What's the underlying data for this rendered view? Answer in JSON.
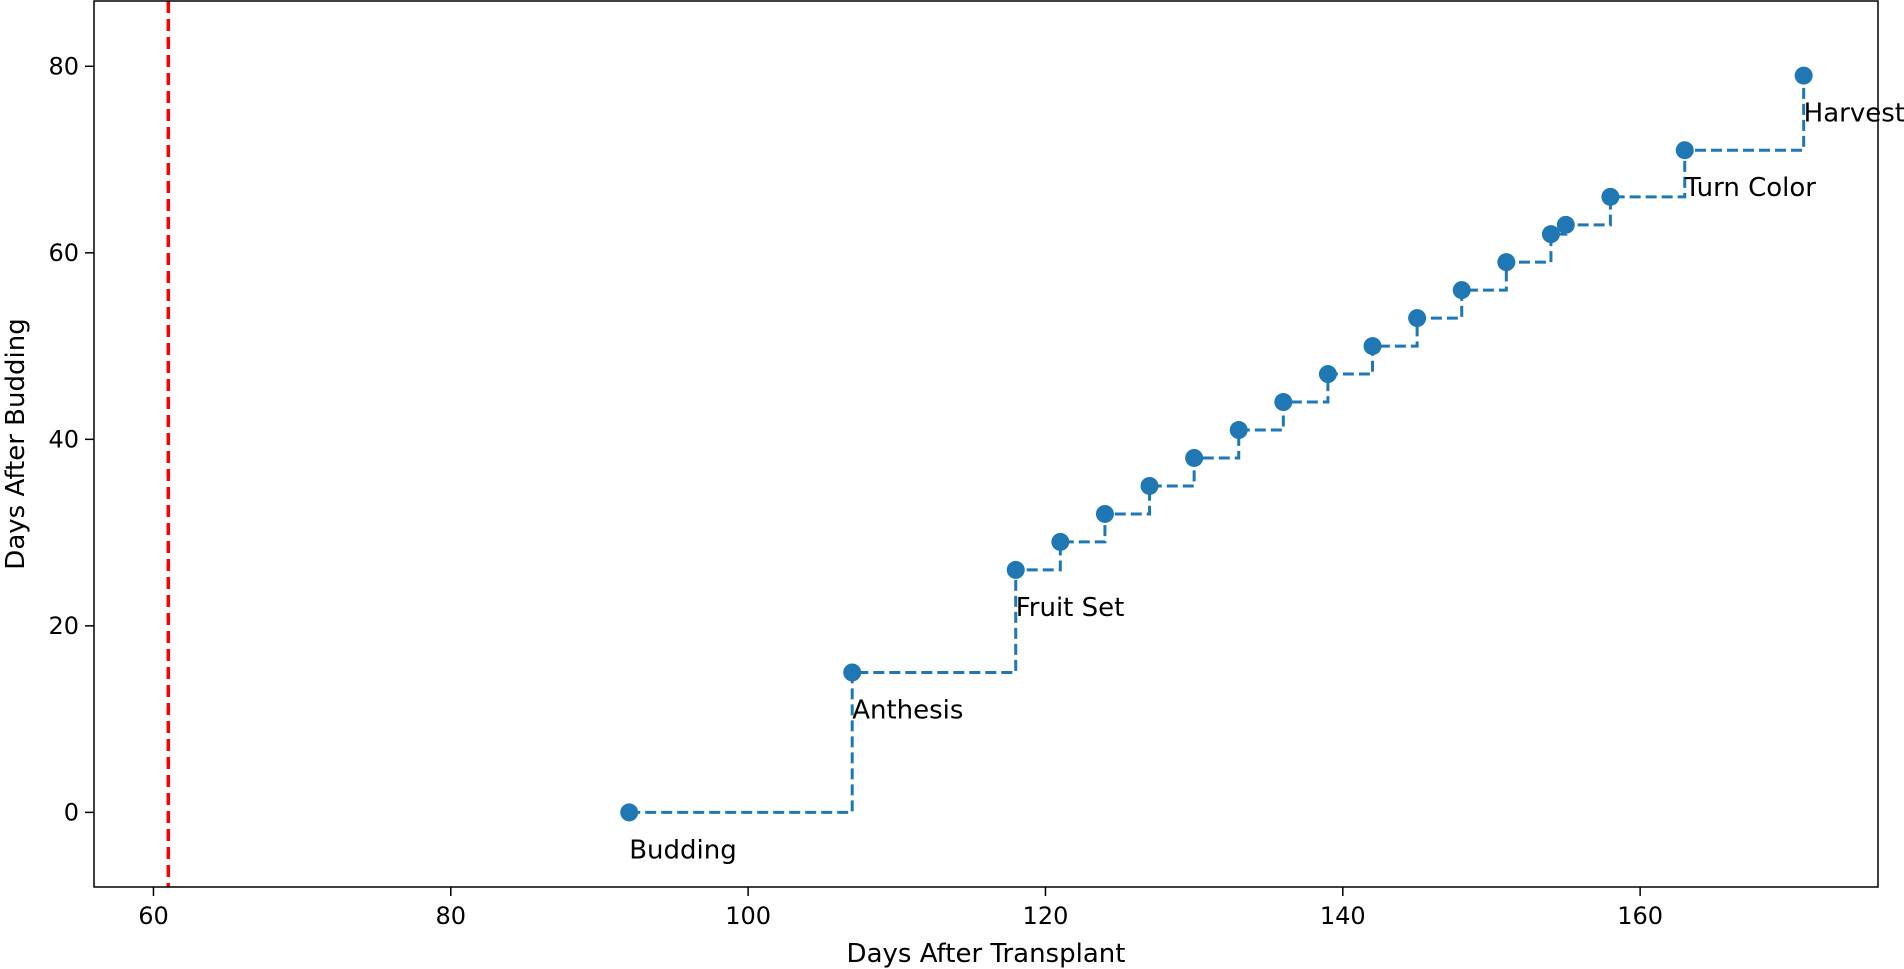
{
  "chart_data": {
    "type": "line",
    "xlabel": "Days After Transplant",
    "ylabel": "Days After Budding",
    "xlim": [
      56,
      176
    ],
    "ylim": [
      -8,
      87
    ],
    "x_ticks": [
      60,
      80,
      100,
      120,
      140,
      160
    ],
    "y_ticks": [
      0,
      20,
      40,
      60,
      80
    ],
    "grid": false,
    "step": "post",
    "series": [
      {
        "color": "#1f77b4",
        "linestyle": "dashed",
        "marker": "circle",
        "x": [
          92,
          107,
          118,
          121,
          124,
          127,
          130,
          133,
          136,
          139,
          142,
          145,
          148,
          151,
          154,
          155,
          158,
          163,
          171
        ],
        "y": [
          0,
          15,
          26,
          29,
          32,
          35,
          38,
          41,
          44,
          47,
          50,
          53,
          56,
          59,
          62,
          63,
          66,
          71,
          79
        ]
      }
    ],
    "reference_line": {
      "axis": "x",
      "value": 61,
      "color": "#ff0000",
      "linestyle": "dashed"
    },
    "annotations": [
      {
        "text": "Budding",
        "x": 92,
        "y": 0
      },
      {
        "text": "Anthesis",
        "x": 107,
        "y": 15
      },
      {
        "text": "Fruit Set",
        "x": 118,
        "y": 26
      },
      {
        "text": "Turn Color",
        "x": 163,
        "y": 71
      },
      {
        "text": "Harvest",
        "x": 171,
        "y": 79
      }
    ]
  }
}
